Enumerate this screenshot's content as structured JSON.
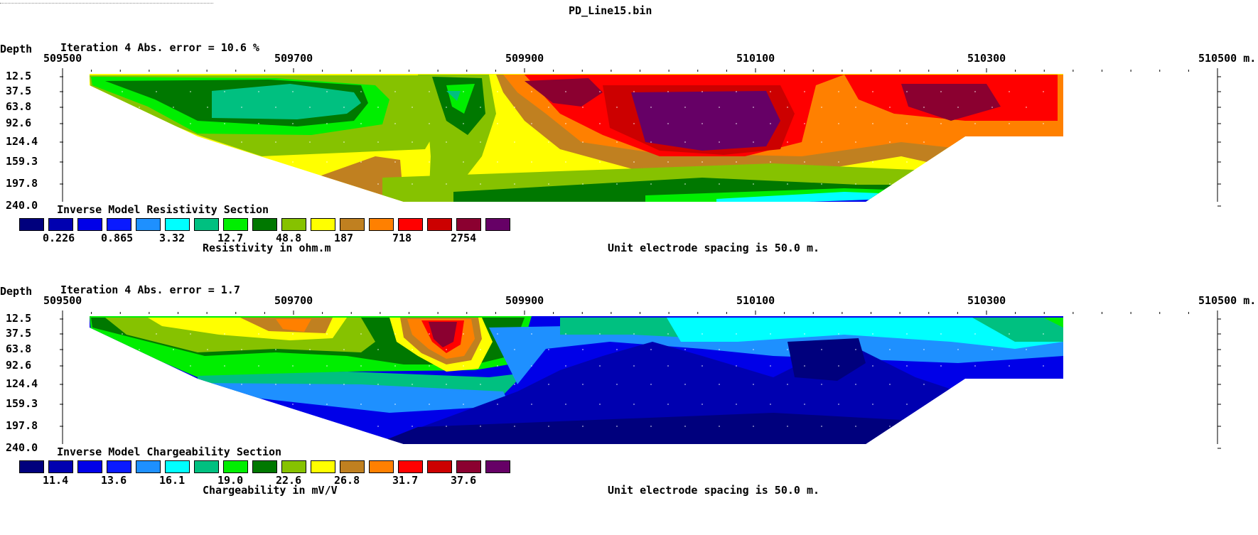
{
  "file_title": "PD_Line15.bin",
  "colors": [
    "#00007d",
    "#0000b0",
    "#0000e8",
    "#0a1aff",
    "#1e90ff",
    "#00ffff",
    "#00c080",
    "#00ee00",
    "#007800",
    "#86c200",
    "#ffff00",
    "#c08020",
    "#ff8000",
    "#ff0000",
    "#cc0000",
    "#8b0030",
    "#660066"
  ],
  "chart_data": [
    {
      "type": "heatmap",
      "depth_label": "Depth",
      "iteration_label": "Iteration 4 Abs. error = 10.6 %",
      "x_tick_labels": [
        "509500",
        "509700",
        "509900",
        "510100",
        "510300",
        "510500 m."
      ],
      "x_ticks": [
        509500,
        509700,
        509900,
        510100,
        510300,
        510500
      ],
      "xlim": [
        509500,
        510500
      ],
      "depth_tick_labels": [
        "12.5",
        "37.5",
        "63.8",
        "92.6",
        "124.4",
        "159.3",
        "197.8",
        "240.0"
      ],
      "section_title": "Inverse Model Resistivity Section",
      "legend_values": [
        "0.226",
        "0.865",
        "3.32",
        "12.7",
        "48.8",
        "187",
        "718",
        "2754"
      ],
      "unit_label": "Resistivity in ohm.m",
      "spacing_label": "Unit electrode spacing is 50.0 m."
    },
    {
      "type": "heatmap",
      "depth_label": "Depth",
      "iteration_label": "Iteration 4 Abs. error = 1.7",
      "x_tick_labels": [
        "509500",
        "509700",
        "509900",
        "510100",
        "510300",
        "510500 m."
      ],
      "x_ticks": [
        509500,
        509700,
        509900,
        510100,
        510300,
        510500
      ],
      "xlim": [
        509500,
        510500
      ],
      "depth_tick_labels": [
        "12.5",
        "37.5",
        "63.8",
        "92.6",
        "124.4",
        "159.3",
        "197.8",
        "240.0"
      ],
      "section_title": "Inverse Model Chargeability Section",
      "legend_values": [
        "11.4",
        "13.6",
        "16.1",
        "19.0",
        "22.6",
        "26.8",
        "31.7",
        "37.6"
      ],
      "unit_label": "Chargeability in mV/V",
      "spacing_label": "Unit electrode spacing is 50.0 m."
    }
  ]
}
